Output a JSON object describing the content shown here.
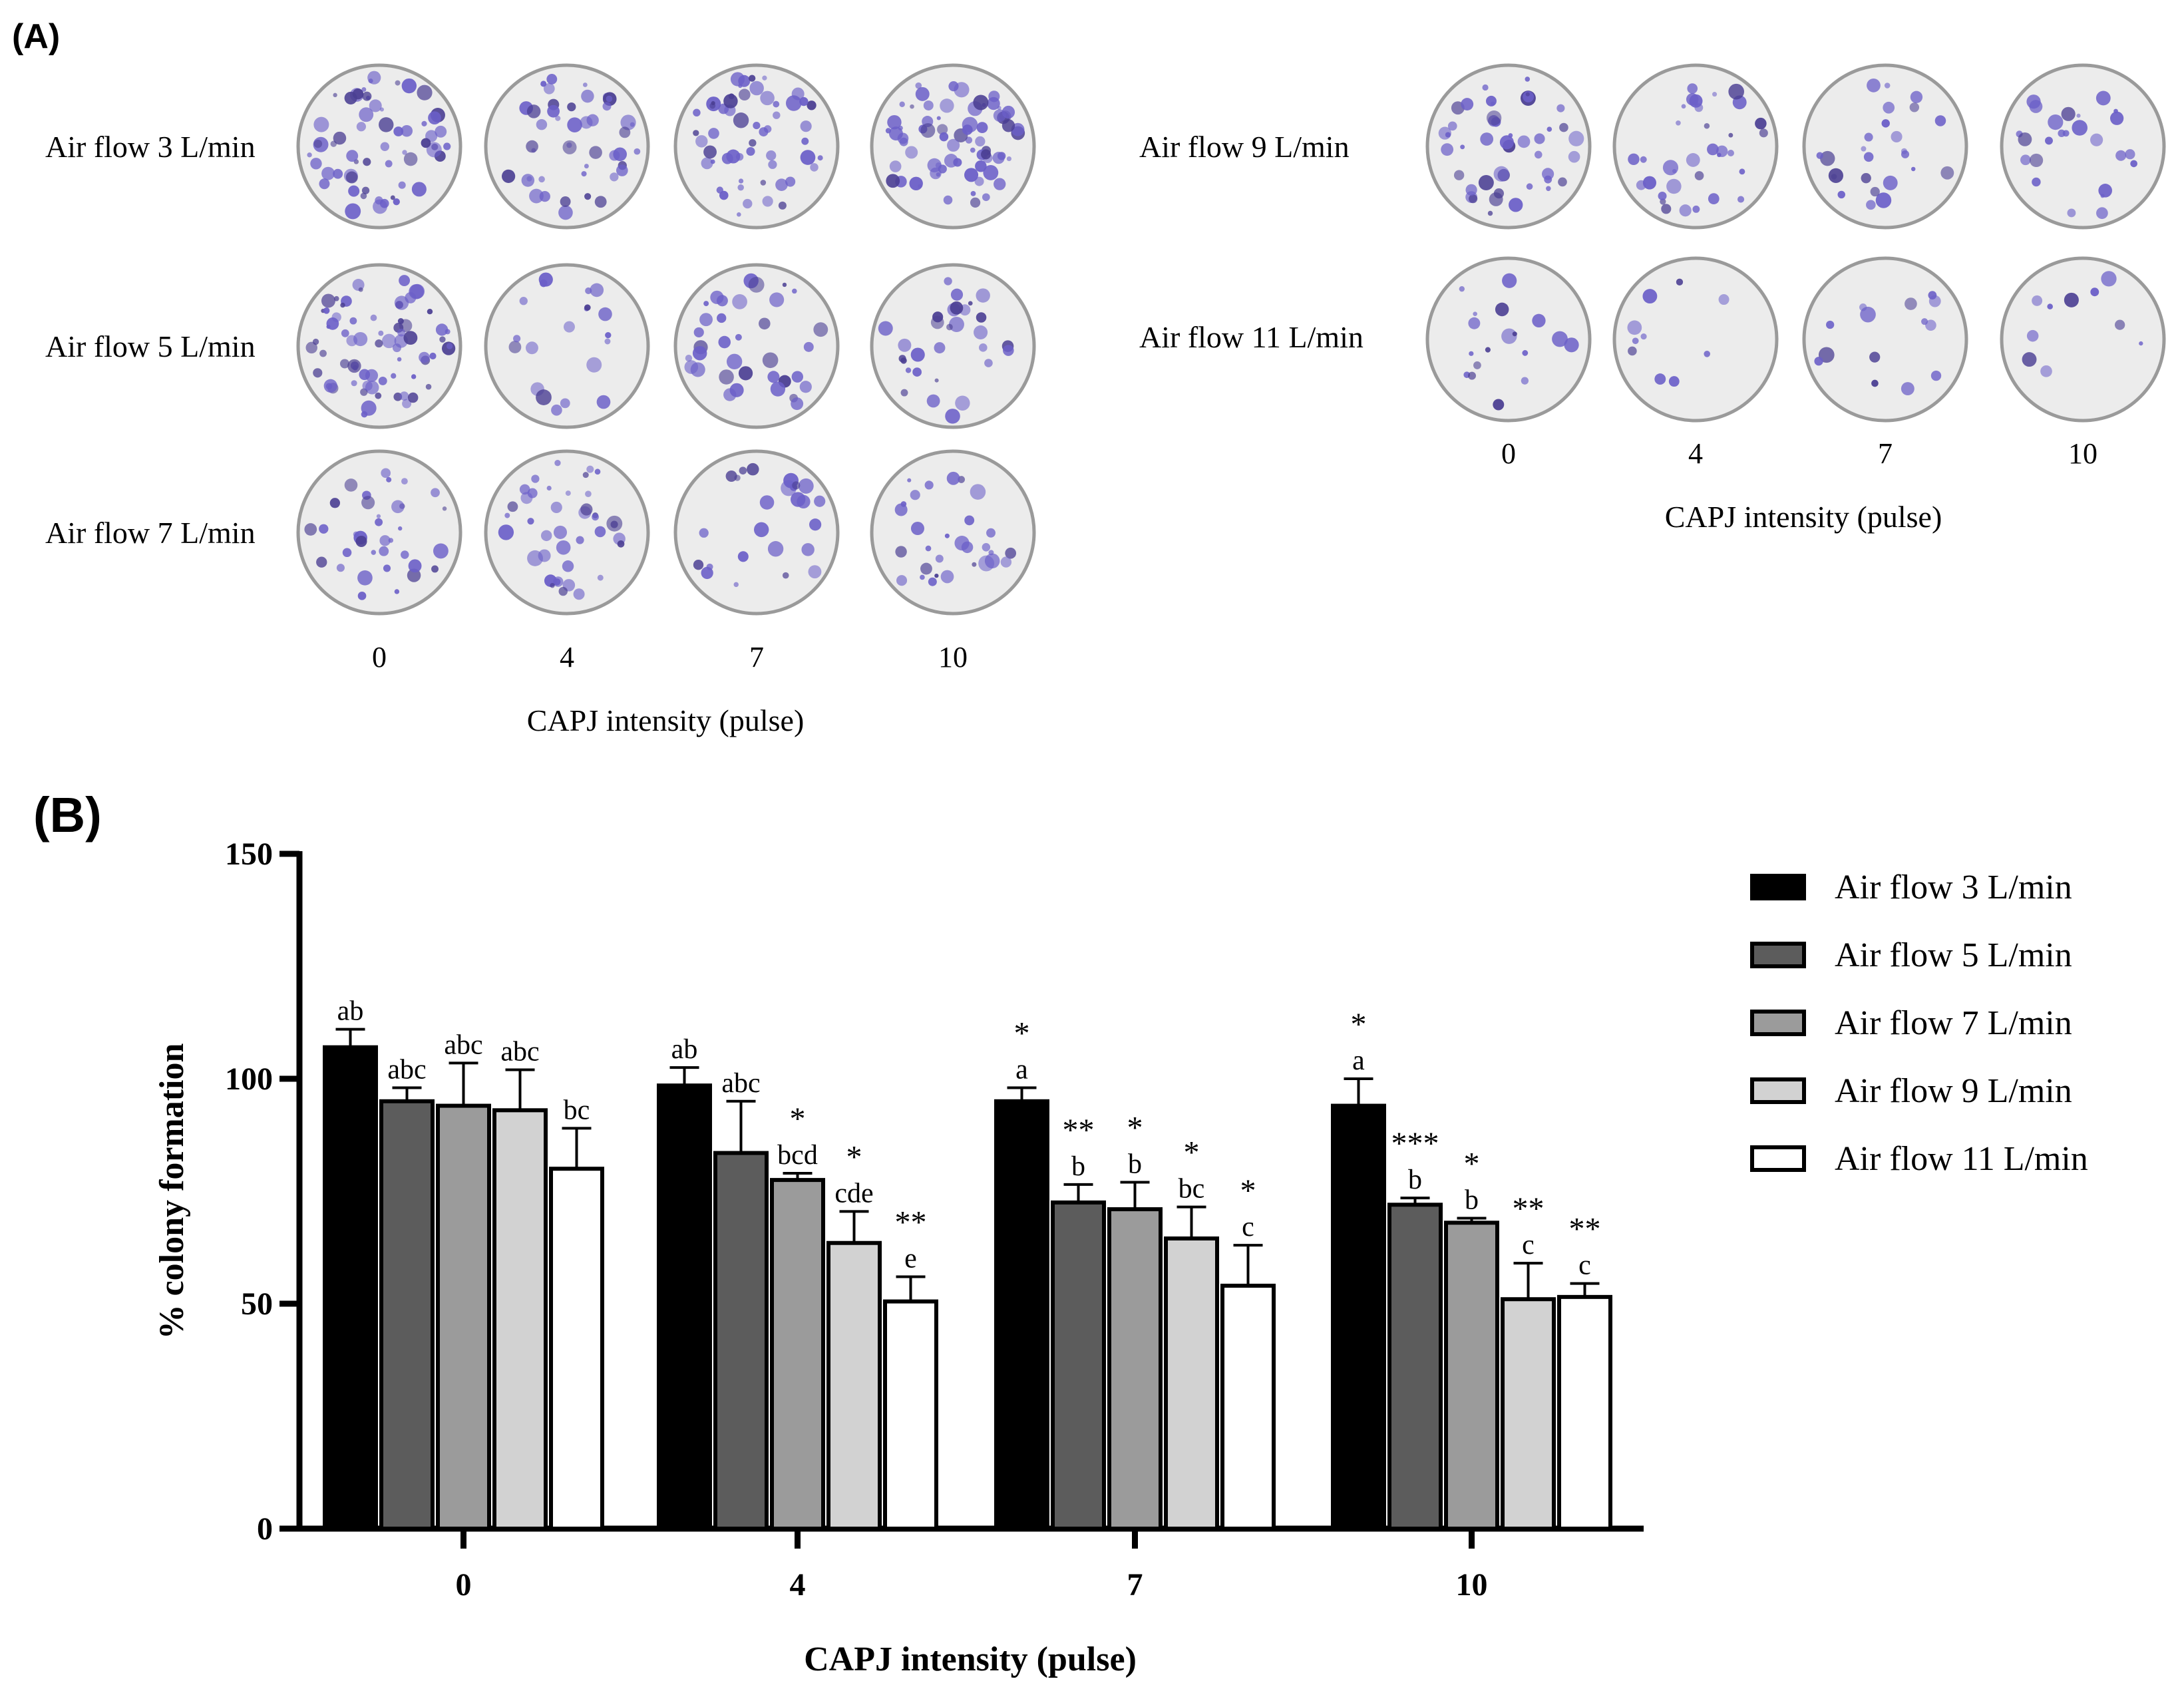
{
  "panel_a": {
    "label": "(A)",
    "left_group": {
      "rows": [
        "Air flow 3 L/min",
        "Air flow 5 L/min",
        "Air flow 7 L/min"
      ],
      "ticks": [
        "0",
        "4",
        "7",
        "10"
      ],
      "xlabel": "CAPJ intensity (pulse)"
    },
    "right_group": {
      "rows": [
        "Air flow 9 L/min",
        "Air flow 11 L/min"
      ],
      "ticks": [
        "0",
        "4",
        "7",
        "10"
      ],
      "xlabel": "CAPJ intensity (pulse)"
    },
    "dish_colors": {
      "rim": "#9a9a9a",
      "plate": "#ececec",
      "colony": "#6b5fc8",
      "colony_dark": "#4b3f93"
    }
  },
  "panel_b": {
    "label": "(B)"
  },
  "chart_data": {
    "type": "bar",
    "title": "",
    "xlabel": "CAPJ intensity (pulse)",
    "ylabel": "% colony formation",
    "categories": [
      "0",
      "4",
      "7",
      "10"
    ],
    "ylim": [
      0,
      150
    ],
    "yticks": [
      0,
      50,
      100,
      150
    ],
    "legend_position": "top-right",
    "series": [
      {
        "name": "Air flow 3 L/min",
        "color": "#000000",
        "values": [
          107,
          98.5,
          95,
          94
        ],
        "errors": [
          4,
          4,
          3,
          6
        ],
        "letters": [
          "ab",
          "ab",
          "a",
          "a"
        ],
        "stars": [
          "",
          "",
          "*",
          "*"
        ]
      },
      {
        "name": "Air flow 5 L/min",
        "color": "#5c5c5c",
        "values": [
          95,
          83.5,
          72.5,
          72
        ],
        "errors": [
          3,
          11.5,
          4,
          1.5
        ],
        "letters": [
          "abc",
          "abc",
          "b",
          "b"
        ],
        "stars": [
          "",
          "",
          "**",
          "***"
        ]
      },
      {
        "name": "Air flow 7 L/min",
        "color": "#9b9b9b",
        "values": [
          94,
          77.5,
          71,
          68
        ],
        "errors": [
          9.5,
          1.5,
          6,
          1
        ],
        "letters": [
          "abc",
          "bcd",
          "b",
          "b"
        ],
        "stars": [
          "",
          "*",
          "*",
          "*"
        ]
      },
      {
        "name": "Air flow 9 L/min",
        "color": "#d2d2d2",
        "values": [
          93,
          63.5,
          64.5,
          51
        ],
        "errors": [
          9,
          7,
          7,
          8
        ],
        "letters": [
          "abc",
          "cde",
          "bc",
          "c"
        ],
        "stars": [
          "",
          "*",
          "*",
          "**"
        ]
      },
      {
        "name": "Air flow 11 L/min",
        "color": "#ffffff",
        "values": [
          80,
          50.5,
          54,
          51.5
        ],
        "errors": [
          9,
          5.5,
          9,
          3
        ],
        "letters": [
          "bc",
          "e",
          "c",
          "c"
        ],
        "stars": [
          "",
          "**",
          "*",
          "**"
        ]
      }
    ]
  }
}
